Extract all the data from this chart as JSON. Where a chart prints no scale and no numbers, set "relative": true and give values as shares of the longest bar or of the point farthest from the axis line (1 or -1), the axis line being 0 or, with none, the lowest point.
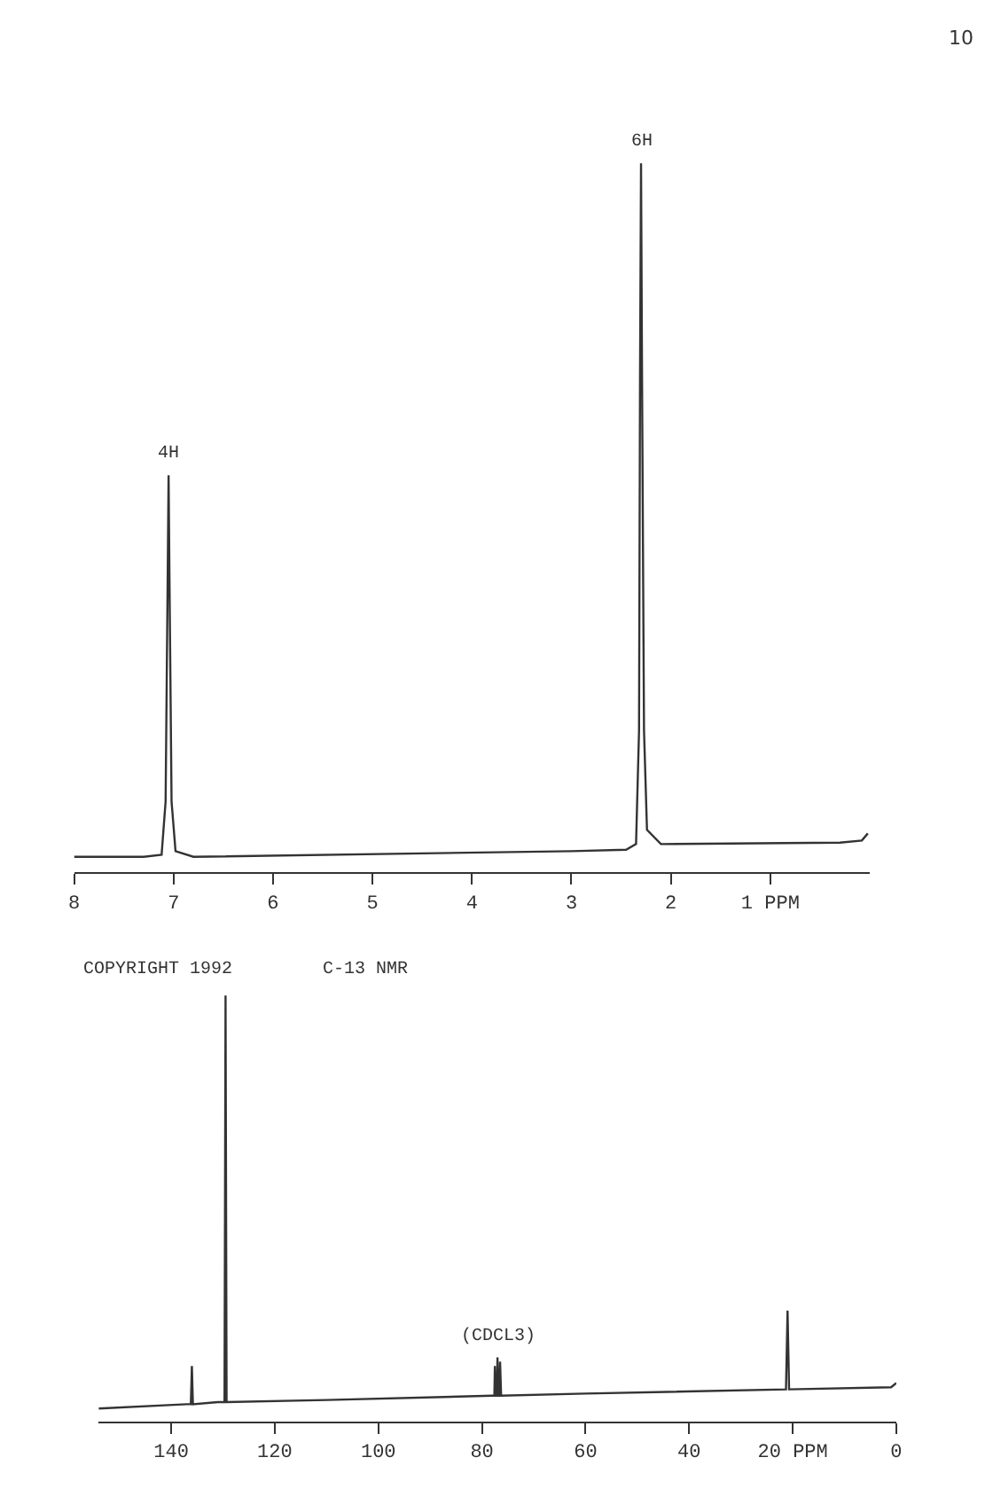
{
  "chart_data": [
    {
      "type": "line",
      "relative": true,
      "color": "#333333",
      "marker": "none",
      "line_style": "solid",
      "legend": false,
      "x": [
        8,
        7.3,
        7.12,
        7.08,
        7.06,
        7.05,
        7.04,
        7.02,
        6.98,
        6.8,
        3.0,
        2.45,
        2.35,
        2.32,
        2.31,
        2.3,
        2.29,
        2.27,
        2.24,
        2.1,
        0.3,
        0.08,
        0.02
      ],
      "values": [
        0.022,
        0.022,
        0.025,
        0.1,
        0.4,
        0.56,
        0.4,
        0.1,
        0.03,
        0.022,
        0.03,
        0.032,
        0.04,
        0.2,
        0.7,
        1,
        0.7,
        0.2,
        0.06,
        0.04,
        0.042,
        0.045,
        0.055
      ],
      "xlim": [
        8,
        0
      ],
      "xticks": [
        8,
        7,
        6,
        5,
        4,
        3,
        2,
        {
          "value": 1,
          "label": "1 PPM"
        }
      ],
      "annotations": [
        {
          "text": "4H",
          "x": 7.05,
          "y": 0.56
        },
        {
          "text": "6H",
          "x": 2.3,
          "y": 1
        },
        "10"
      ]
    },
    {
      "type": "line",
      "relative": true,
      "color": "#333333",
      "marker": "none",
      "line_style": "solid",
      "legend": false,
      "title": "C-13 NMR",
      "x": [
        154,
        137,
        136.2,
        136,
        135.8,
        131,
        129.7,
        129.5,
        129.3,
        110,
        78,
        77.6,
        77.5,
        77.3,
        77.1,
        77.0,
        76.8,
        76.6,
        76.5,
        76.3,
        60,
        21.3,
        21,
        20.7,
        1,
        0
      ],
      "values": [
        0.03,
        0.04,
        0.04,
        0.13,
        0.04,
        0.045,
        0.045,
        1,
        0.045,
        0.05,
        0.06,
        0.06,
        0.13,
        0.06,
        0.06,
        0.15,
        0.06,
        0.06,
        0.14,
        0.06,
        0.065,
        0.075,
        0.26,
        0.075,
        0.08,
        0.09
      ],
      "xlim": [
        154,
        0
      ],
      "xticks": [
        140,
        120,
        100,
        80,
        60,
        40,
        {
          "value": 20,
          "label": "20 PPM"
        },
        0
      ],
      "annotations": [
        "COPYRIGHT 1992",
        {
          "text": "(CDCL3)",
          "x": 77,
          "y": 0.15
        }
      ]
    }
  ]
}
